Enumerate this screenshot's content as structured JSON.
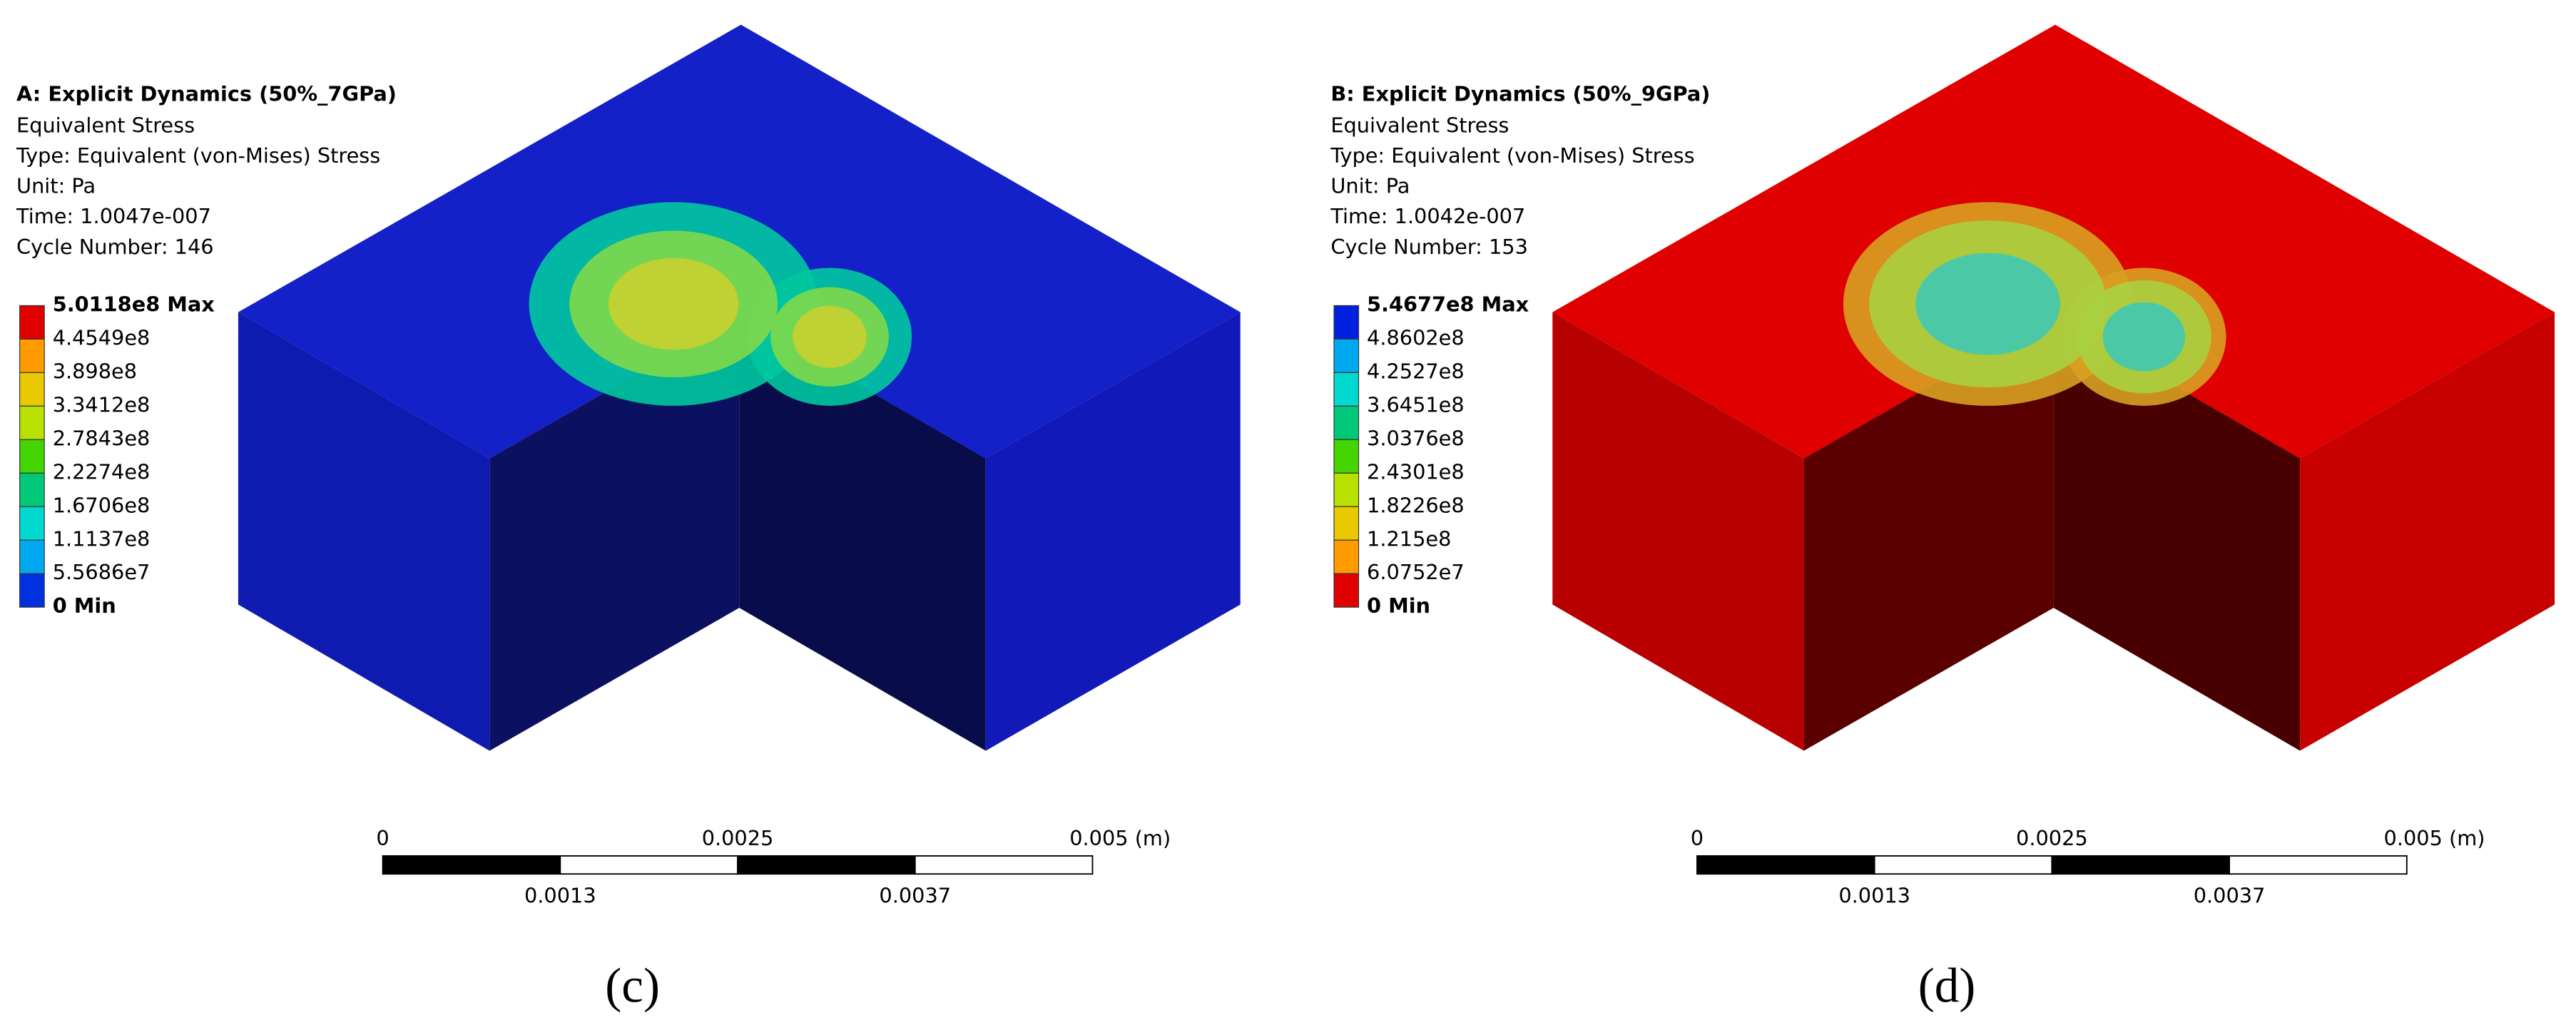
{
  "panels": [
    {
      "title": "A: Explicit Dynamics (50%_7GPa)",
      "info": [
        "Equivalent Stress",
        "Type: Equivalent (von-Mises) Stress",
        "Unit: Pa",
        "Time: 1.0047e-007",
        "Cycle Number: 146"
      ],
      "legend": [
        "5.0118e8 Max",
        "4.4549e8",
        "3.898e8",
        "3.3412e8",
        "2.7843e8",
        "2.2274e8",
        "1.6706e8",
        "1.1137e8",
        "5.5686e7",
        "0 Min"
      ],
      "scale_top": [
        "0",
        "0.0025",
        "0.005 (m)"
      ],
      "scale_bottom": [
        "0.0013",
        "0.0037"
      ],
      "caption": "(c)"
    },
    {
      "title": "B: Explicit Dynamics (50%_9GPa)",
      "info": [
        "Equivalent Stress",
        "Type: Equivalent (von-Mises) Stress",
        "Unit: Pa",
        "Time: 1.0042e-007",
        "Cycle Number: 153"
      ],
      "legend": [
        "5.4677e8 Max",
        "4.8602e8",
        "4.2527e8",
        "3.6451e8",
        "3.0376e8",
        "2.4301e8",
        "1.8226e8",
        "1.215e8",
        "6.0752e7",
        "0 Min"
      ],
      "scale_top": [
        "0",
        "0.0025",
        "0.005 (m)"
      ],
      "scale_bottom": [
        "0.0013",
        "0.0037"
      ],
      "caption": "(d)"
    }
  ]
}
